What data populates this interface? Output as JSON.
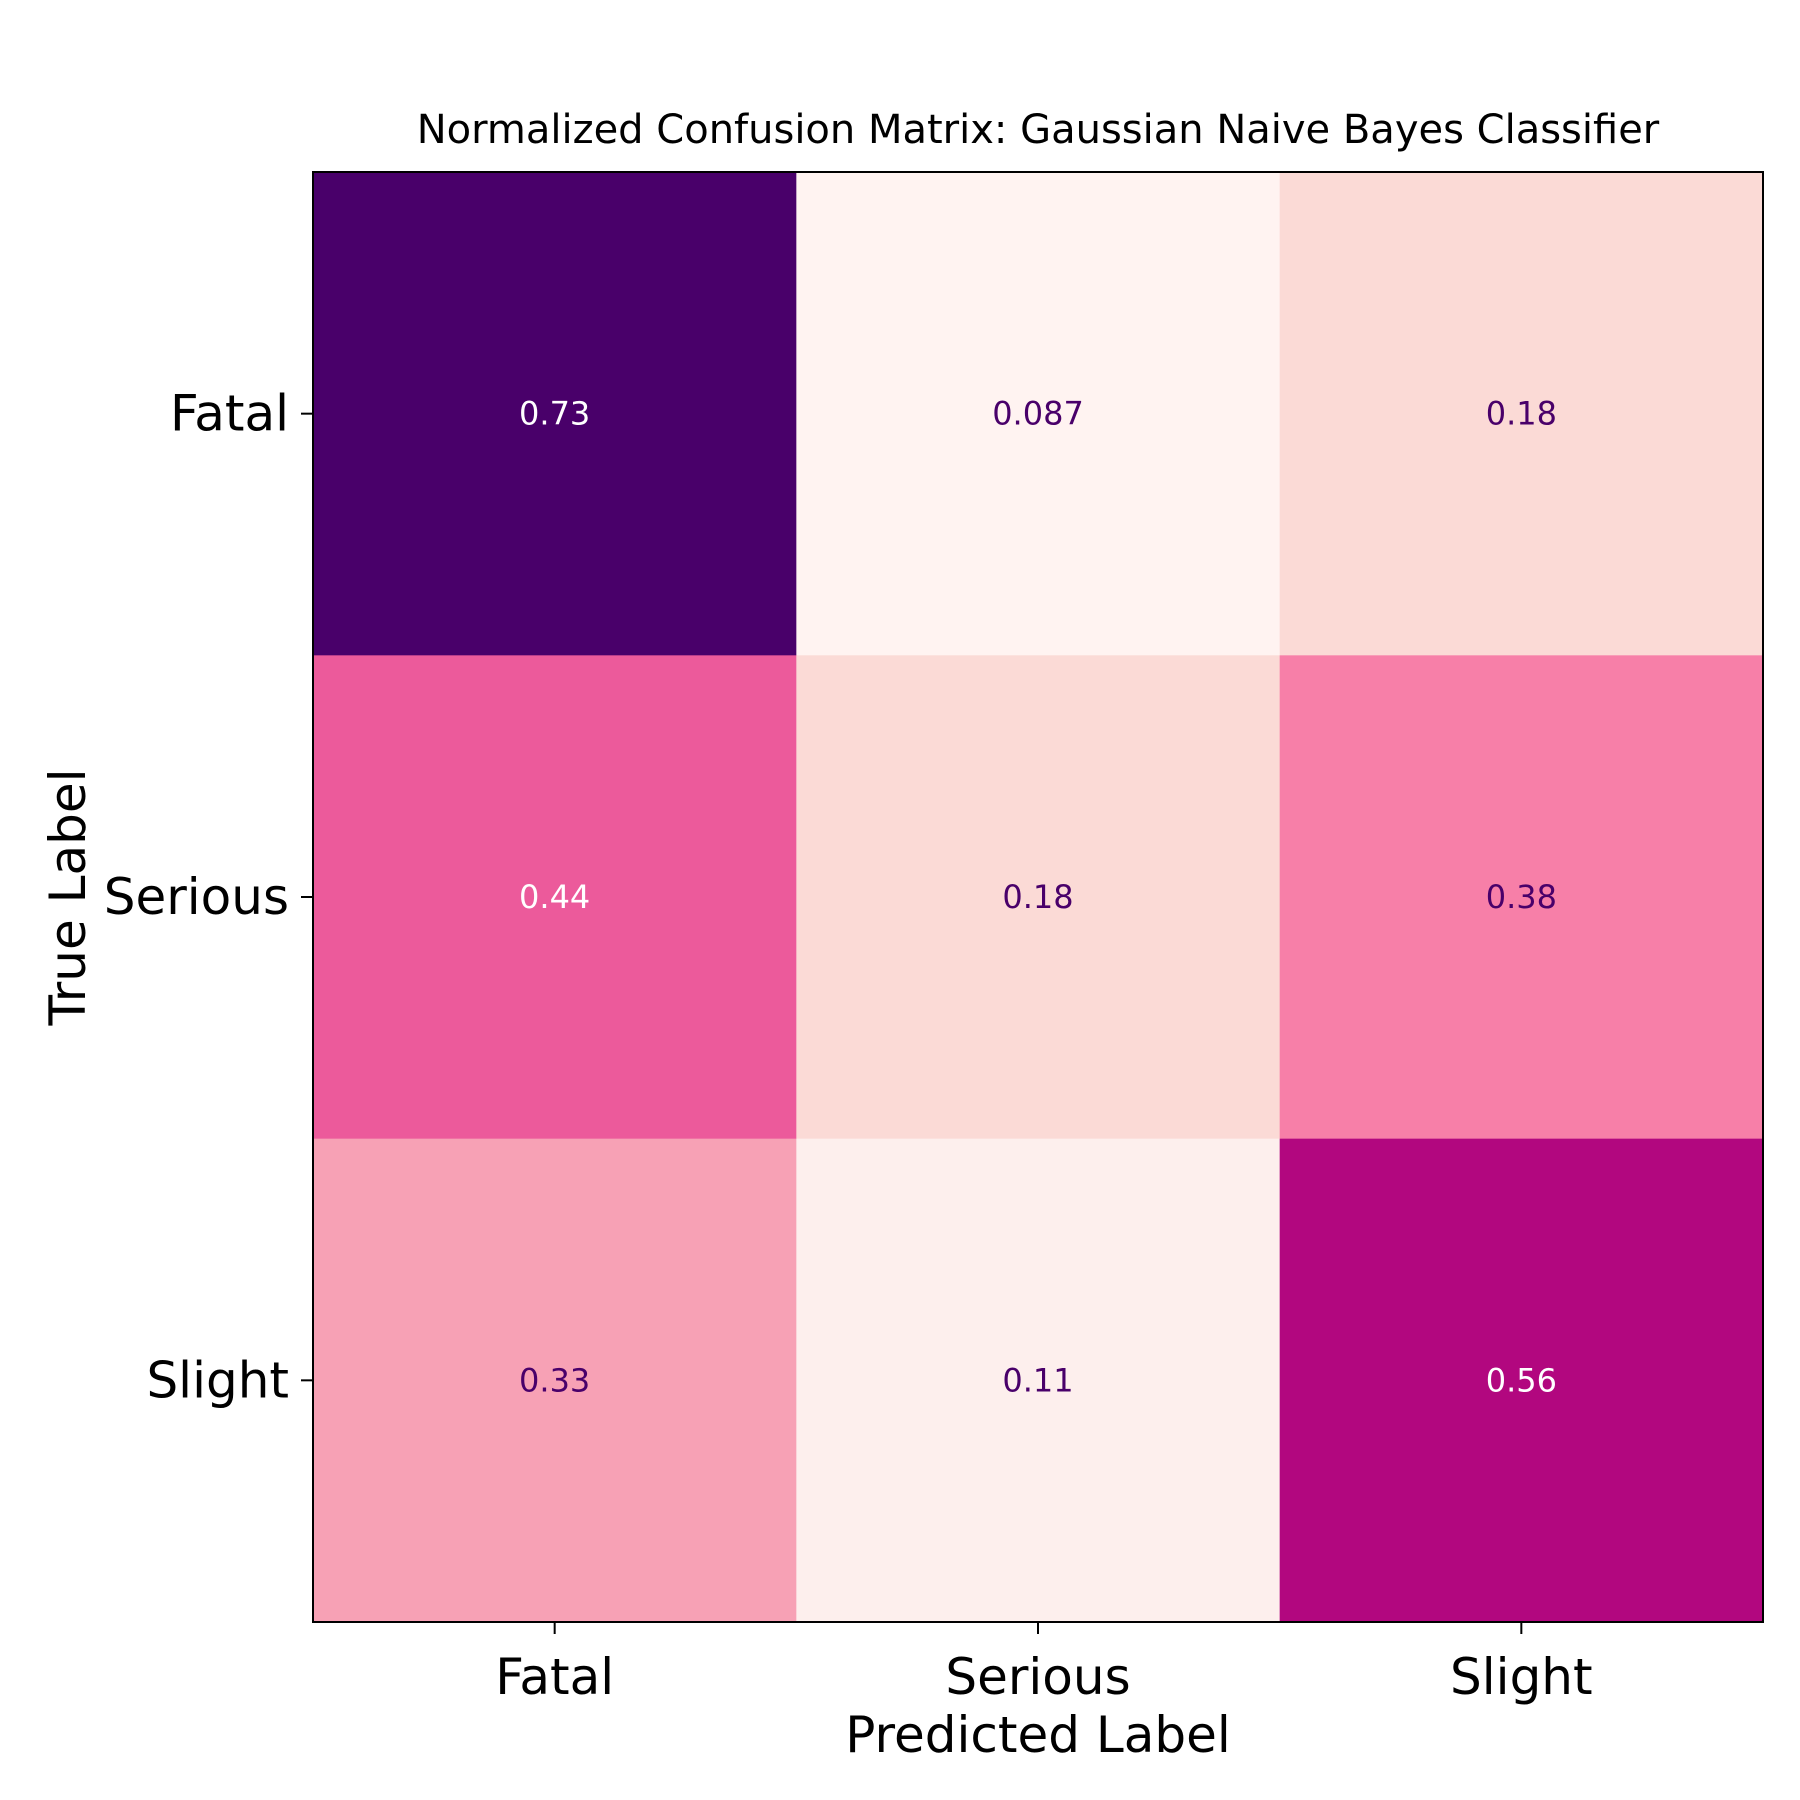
{
  "chart_data": {
    "type": "heatmap",
    "title": "Normalized Confusion Matrix: Gaussian Naive Bayes Classifier",
    "xlabel": "Predicted Label",
    "ylabel": "True Label",
    "x_categories": [
      "Fatal",
      "Serious",
      "Slight"
    ],
    "y_categories": [
      "Fatal",
      "Serious",
      "Slight"
    ],
    "values": [
      [
        0.73,
        0.087,
        0.18
      ],
      [
        0.44,
        0.18,
        0.38
      ],
      [
        0.33,
        0.11,
        0.56
      ]
    ],
    "value_labels": [
      [
        "0.73",
        "0.087",
        "0.18"
      ],
      [
        "0.44",
        "0.18",
        "0.38"
      ],
      [
        "0.33",
        "0.11",
        "0.56"
      ]
    ],
    "colormap": "RdPu",
    "vmin": 0.087,
    "vmax": 0.73,
    "colors": {
      "low_text": "#49006a",
      "high_text": "#ffffff",
      "cells": [
        [
          "#49006a",
          "#fff3f1",
          "#fbdad6"
        ],
        [
          "#ec5a9b",
          "#fbdad6",
          "#f77fa8"
        ],
        [
          "#f7a1b5",
          "#fdefed",
          "#b2077f"
        ]
      ]
    }
  }
}
